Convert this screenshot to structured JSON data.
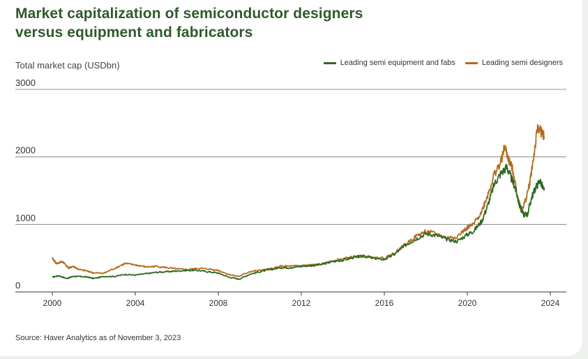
{
  "title": {
    "line1": "Market capitalization of semiconductor designers",
    "line2": "versus equipment and fabricators"
  },
  "source": "Source: Haver Analytics as of November 3, 2023",
  "colors": {
    "equipment": "#2e6a22",
    "designers": "#b26d1e",
    "title": "#2f5a2a",
    "grid": "#555555"
  },
  "chart_data": {
    "type": "line",
    "title": "Market capitalization of semiconductor designers versus equipment and fabricators",
    "ylabel": "Total market cap (USDbn)",
    "xlabel": "",
    "xlim": [
      1999.8,
      2024.2
    ],
    "ylim": [
      0,
      3000
    ],
    "yticks": [
      0,
      1000,
      2000,
      3000
    ],
    "ytick_labels": [
      "0",
      "1000",
      "2000",
      "3000"
    ],
    "xticks": [
      2000,
      2004,
      2008,
      2012,
      2016,
      2020,
      2024
    ],
    "xtick_labels": [
      "2000",
      "2004",
      "2008",
      "2012",
      "2016",
      "2020",
      "2024"
    ],
    "legend_position": "top-right",
    "series": [
      {
        "name": "Leading semi equipment and fabs",
        "color": "#2e6a22",
        "x": [
          2000.0,
          2000.3,
          2000.7,
          2001.0,
          2001.3,
          2001.7,
          2002.0,
          2002.5,
          2003.0,
          2003.5,
          2004.0,
          2004.5,
          2005.0,
          2005.5,
          2006.0,
          2006.5,
          2007.0,
          2007.5,
          2008.0,
          2008.5,
          2009.0,
          2009.5,
          2010.0,
          2010.5,
          2011.0,
          2011.5,
          2012.0,
          2012.5,
          2013.0,
          2013.5,
          2014.0,
          2014.5,
          2015.0,
          2015.5,
          2016.0,
          2016.5,
          2017.0,
          2017.5,
          2018.0,
          2018.5,
          2019.0,
          2019.5,
          2020.0,
          2020.3,
          2020.7,
          2021.0,
          2021.3,
          2021.6,
          2021.9,
          2022.1,
          2022.3,
          2022.5,
          2022.7,
          2022.9,
          2023.1,
          2023.3,
          2023.5,
          2023.7
        ],
        "values": [
          220,
          240,
          200,
          230,
          230,
          220,
          200,
          230,
          230,
          260,
          250,
          270,
          290,
          300,
          310,
          320,
          320,
          300,
          280,
          220,
          190,
          260,
          300,
          330,
          360,
          360,
          380,
          390,
          410,
          450,
          470,
          510,
          530,
          500,
          480,
          560,
          690,
          780,
          860,
          840,
          780,
          750,
          850,
          900,
          1050,
          1300,
          1600,
          1750,
          1850,
          1700,
          1550,
          1300,
          1150,
          1150,
          1400,
          1550,
          1650,
          1500
        ]
      },
      {
        "name": "Leading semi designers",
        "color": "#b26d1e",
        "x": [
          2000.0,
          2000.2,
          2000.5,
          2000.8,
          2001.0,
          2001.3,
          2001.7,
          2002.0,
          2002.5,
          2003.0,
          2003.5,
          2004.0,
          2004.5,
          2005.0,
          2005.5,
          2006.0,
          2006.5,
          2007.0,
          2007.5,
          2008.0,
          2008.5,
          2009.0,
          2009.5,
          2010.0,
          2010.5,
          2011.0,
          2011.5,
          2012.0,
          2012.5,
          2013.0,
          2013.5,
          2014.0,
          2014.5,
          2015.0,
          2015.5,
          2016.0,
          2016.5,
          2017.0,
          2017.5,
          2018.0,
          2018.5,
          2019.0,
          2019.5,
          2020.0,
          2020.3,
          2020.7,
          2021.0,
          2021.3,
          2021.6,
          2021.8,
          2022.0,
          2022.2,
          2022.4,
          2022.6,
          2022.8,
          2023.0,
          2023.2,
          2023.4,
          2023.6,
          2023.7
        ],
        "values": [
          500,
          420,
          450,
          350,
          380,
          330,
          310,
          280,
          280,
          350,
          420,
          400,
          370,
          380,
          360,
          340,
          330,
          350,
          340,
          320,
          260,
          230,
          300,
          320,
          340,
          380,
          380,
          390,
          400,
          410,
          460,
          490,
          520,
          530,
          510,
          500,
          580,
          700,
          820,
          900,
          860,
          800,
          820,
          950,
          1000,
          1200,
          1450,
          1750,
          1900,
          2150,
          1950,
          1800,
          1450,
          1200,
          1350,
          1600,
          2000,
          2450,
          2350,
          2300
        ]
      }
    ]
  }
}
